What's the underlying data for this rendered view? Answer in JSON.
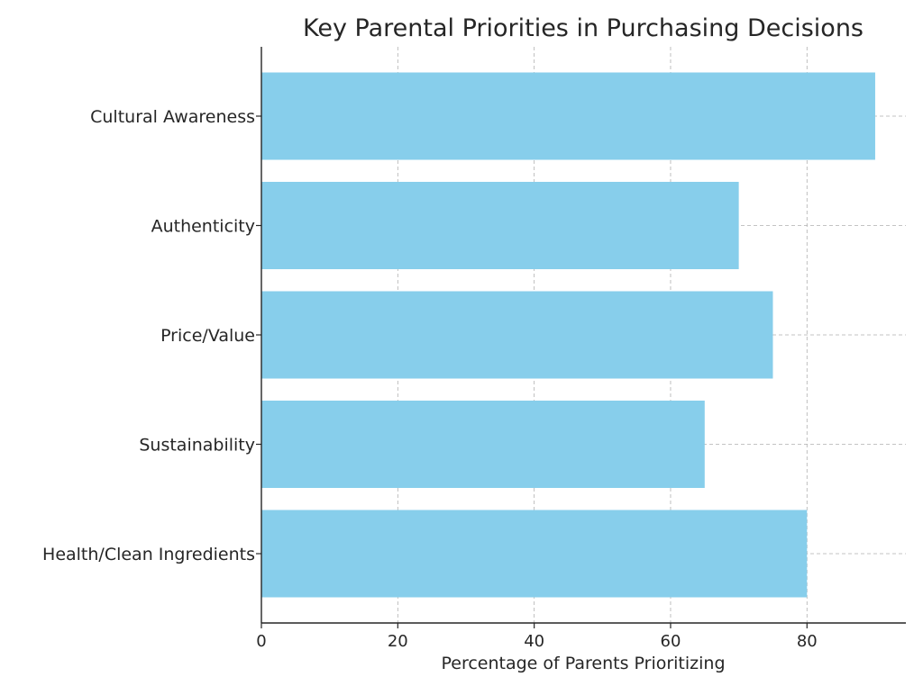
{
  "chart_data": {
    "type": "bar",
    "orientation": "horizontal",
    "title": "Key Parental Priorities in Purchasing Decisions",
    "xlabel": "Percentage of Parents Prioritizing",
    "ylabel": "",
    "categories": [
      "Health/Clean Ingredients",
      "Sustainability",
      "Price/Value",
      "Authenticity",
      "Cultural Awareness"
    ],
    "values": [
      80,
      65,
      75,
      70,
      90
    ],
    "xlim": [
      0,
      94.5
    ],
    "xticks": [
      0,
      20,
      40,
      60,
      80
    ],
    "grid": true,
    "legend": "none",
    "bar_color": "#87CEEB"
  }
}
